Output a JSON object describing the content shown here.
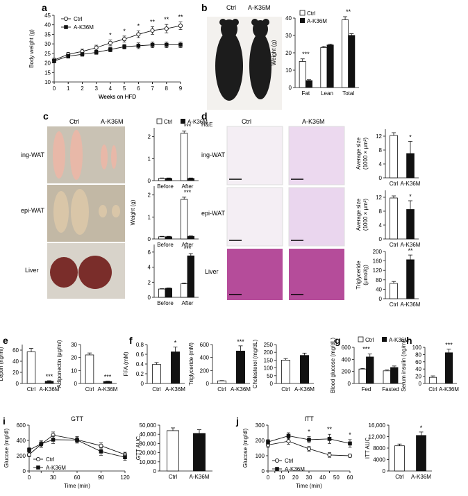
{
  "colors": {
    "ctrl": "#ffffff",
    "ak": "#111111",
    "stroke": "#111111",
    "mouse": "#1c1c1c",
    "wat": "#e8b8a8",
    "epi": "#d9c6a8",
    "liver": "#7a2d2a",
    "he_wat": "#c48fc9",
    "he_liver": "#b54c9a"
  },
  "panels": {
    "a": "a",
    "b": "b",
    "c": "c",
    "d": "d",
    "e": "e",
    "f": "f",
    "g": "g",
    "h": "h",
    "i": "i",
    "j": "j"
  },
  "labels": {
    "ctrl": "Ctrl",
    "ak": "A-K36M",
    "he": "H&E",
    "ing_wat": "ing-WAT",
    "epi_wat": "epi-WAT",
    "liver": "Liver",
    "before": "Before",
    "after": "After",
    "weeks_on_hfd": "Weeks on HFD",
    "body_weight": "Body weight (g)",
    "weight_g": "Weight (g)",
    "fat": "Fat",
    "lean": "Lean",
    "total": "Total",
    "avg_size": "Average size",
    "avg_size_unit": "(1000 × μm²)",
    "triglyceride_umol": "Triglyceride",
    "triglyceride_umol_unit": "(μmol/g)",
    "leptin": "Leptin (ng/ml)",
    "adiponectin": "Adiponectin (μg/ml)",
    "ffa": "FFA (mM)",
    "triglyceride_mm": "Triglyceride (mM)",
    "cholesterol": "Cholesterol (mg/dL)",
    "blood_glucose": "Blood glucose (mg/dL)",
    "fed": "Fed",
    "fasted": "Fasted",
    "serum_insulin": "Serum insulin (ng/ml)",
    "gtt": "GTT",
    "itt": "ITT",
    "glucose_mgdl": "Glucose (mg/dl)",
    "time_min": "Time (min)",
    "gtt_auc": "GTT AUC",
    "itt_auc": "ITT AUC"
  },
  "chart_data": [
    {
      "id": "a",
      "type": "line",
      "xlabel": "Weeks on HFD",
      "ylabel": "Body weight (g)",
      "xlim": [
        0,
        9
      ],
      "ylim": [
        10,
        45
      ],
      "x": [
        0,
        1,
        2,
        3,
        4,
        5,
        6,
        7,
        8,
        9
      ],
      "series": [
        {
          "name": "Ctrl",
          "values": [
            21.5,
            24.5,
            26,
            28,
            30.5,
            32.5,
            35,
            37,
            38,
            39.5
          ],
          "err": [
            1,
            1,
            1.2,
            1.3,
            1.5,
            1.6,
            1.8,
            2,
            2.2,
            2
          ]
        },
        {
          "name": "A-K36M",
          "values": [
            21,
            23.5,
            24.5,
            25.5,
            27,
            28.5,
            29,
            29.5,
            29.5,
            29.5
          ],
          "err": [
            1,
            1,
            1,
            1,
            1.2,
            1.2,
            1.5,
            1.5,
            1.5,
            1.5
          ]
        }
      ],
      "sig": [
        "",
        "",
        "",
        "",
        "*",
        "*",
        "*",
        "**",
        "**",
        "**"
      ]
    },
    {
      "id": "b",
      "type": "bar",
      "ylabel": "Weight (g)",
      "ylim": [
        0,
        40
      ],
      "categories": [
        "Fat",
        "Lean",
        "Total"
      ],
      "series": [
        {
          "name": "Ctrl",
          "values": [
            15,
            23,
            39
          ],
          "err": [
            1.5,
            0.8,
            1.8
          ]
        },
        {
          "name": "A-K36M",
          "values": [
            4,
            24.5,
            30
          ],
          "err": [
            0.5,
            0.5,
            1
          ]
        }
      ],
      "sig": [
        "***",
        "",
        "**"
      ]
    },
    {
      "id": "c1",
      "type": "bar",
      "ylabel": "",
      "ylim": [
        0,
        2.4
      ],
      "categories": [
        "Before",
        "After"
      ],
      "series": [
        {
          "name": "Ctrl",
          "values": [
            0.1,
            2.15
          ],
          "err": [
            0.02,
            0.1
          ]
        },
        {
          "name": "A-K36M",
          "values": [
            0.1,
            0.1
          ],
          "err": [
            0.02,
            0.02
          ]
        }
      ],
      "sig": [
        "",
        "***"
      ]
    },
    {
      "id": "c2",
      "type": "bar",
      "ylabel": "Weight (g)",
      "ylim": [
        0,
        2.4
      ],
      "categories": [
        "Before",
        "After"
      ],
      "series": [
        {
          "name": "Ctrl",
          "values": [
            0.1,
            1.8
          ],
          "err": [
            0.02,
            0.1
          ]
        },
        {
          "name": "A-K36M",
          "values": [
            0.1,
            0.12
          ],
          "err": [
            0.02,
            0.02
          ]
        }
      ],
      "sig": [
        "",
        "***"
      ]
    },
    {
      "id": "c3",
      "type": "bar",
      "ylabel": "",
      "ylim": [
        0,
        7
      ],
      "categories": [
        "Before",
        "After"
      ],
      "series": [
        {
          "name": "Ctrl",
          "values": [
            1.1,
            1.8
          ],
          "err": [
            0.05,
            0.1
          ]
        },
        {
          "name": "A-K36M",
          "values": [
            1.2,
            5.5
          ],
          "err": [
            0.05,
            0.3
          ]
        }
      ],
      "sig": [
        "",
        "***"
      ]
    },
    {
      "id": "d1",
      "type": "bar",
      "ylabel": "Average size (1000 × μm²)",
      "ylim": [
        0,
        14
      ],
      "categories": [
        "Ctrl",
        "A-K36M"
      ],
      "values": [
        12.2,
        7
      ],
      "err": [
        0.8,
        3.5
      ],
      "sig": [
        "",
        "*"
      ]
    },
    {
      "id": "d2",
      "type": "bar",
      "ylabel": "Average size (1000 × μm²)",
      "ylim": [
        0,
        14
      ],
      "categories": [
        "Ctrl",
        "A-K36M"
      ],
      "values": [
        11.8,
        8.5
      ],
      "err": [
        0.6,
        2.5
      ],
      "sig": [
        "",
        "*"
      ]
    },
    {
      "id": "d3",
      "type": "bar",
      "ylabel": "Triglyceride (μmol/g)",
      "ylim": [
        0,
        200
      ],
      "categories": [
        "Ctrl",
        "A-K36M"
      ],
      "values": [
        65,
        165
      ],
      "err": [
        8,
        20
      ],
      "sig": [
        "",
        "**"
      ]
    },
    {
      "id": "e1",
      "type": "bar",
      "ylabel": "Leptin (ng/ml)",
      "ylim": [
        0,
        70
      ],
      "categories": [
        "Ctrl",
        "A-K36M"
      ],
      "values": [
        57,
        4
      ],
      "err": [
        6,
        1
      ],
      "sig": [
        "",
        "***"
      ]
    },
    {
      "id": "e2",
      "type": "bar",
      "ylabel": "Adiponectin (μg/ml)",
      "ylim": [
        0,
        30
      ],
      "categories": [
        "Ctrl",
        "A-K36M"
      ],
      "values": [
        22,
        1.5
      ],
      "err": [
        1.5,
        0.3
      ],
      "sig": [
        "",
        "***"
      ]
    },
    {
      "id": "f1",
      "type": "bar",
      "ylabel": "FFA (mM)",
      "ylim": [
        0,
        0.8
      ],
      "categories": [
        "Ctrl",
        "A-K36M"
      ],
      "values": [
        0.39,
        0.65
      ],
      "err": [
        0.04,
        0.1
      ],
      "sig": [
        "",
        "*"
      ]
    },
    {
      "id": "f2",
      "type": "bar",
      "ylabel": "Triglyceride (mM)",
      "ylim": [
        0,
        600
      ],
      "categories": [
        "Ctrl",
        "A-K36M"
      ],
      "values": [
        40,
        500
      ],
      "err": [
        5,
        80
      ],
      "sig": [
        "",
        "***"
      ]
    },
    {
      "id": "f3",
      "type": "bar",
      "ylabel": "Cholesterol (mg/dL)",
      "ylim": [
        0,
        250
      ],
      "categories": [
        "Ctrl",
        "A-K36M"
      ],
      "values": [
        150,
        180
      ],
      "err": [
        10,
        15
      ],
      "sig": [
        "",
        ""
      ]
    },
    {
      "id": "g",
      "type": "bar",
      "ylabel": "Blood glucose (mg/dL)",
      "ylim": [
        0,
        600
      ],
      "categories": [
        "Fed",
        "Fasted"
      ],
      "series": [
        {
          "name": "Ctrl",
          "values": [
            240,
            210
          ],
          "err": [
            10,
            15
          ]
        },
        {
          "name": "A-K36M",
          "values": [
            440,
            265
          ],
          "err": [
            50,
            25
          ]
        }
      ],
      "sig": [
        "***",
        ""
      ]
    },
    {
      "id": "h",
      "type": "bar",
      "ylabel": "Serum insulin (ng/ml)",
      "ylim": [
        0,
        100
      ],
      "categories": [
        "Ctrl",
        "A-K36M"
      ],
      "values": [
        17,
        85
      ],
      "err": [
        4,
        10
      ],
      "sig": [
        "",
        "***"
      ]
    },
    {
      "id": "i1",
      "type": "line",
      "title": "GTT",
      "xlabel": "Time (min)",
      "ylabel": "Glucose (mg/dl)",
      "xlim": [
        0,
        120
      ],
      "ylim": [
        0,
        600
      ],
      "x": [
        0,
        15,
        30,
        60,
        90,
        120
      ],
      "series": [
        {
          "name": "Ctrl",
          "values": [
            215,
            350,
            470,
            410,
            330,
            215
          ],
          "err": [
            30,
            40,
            40,
            40,
            40,
            30
          ]
        },
        {
          "name": "A-K36M",
          "values": [
            275,
            355,
            410,
            405,
            255,
            180
          ],
          "err": [
            30,
            40,
            50,
            40,
            50,
            40
          ]
        }
      ]
    },
    {
      "id": "i2",
      "type": "bar",
      "ylabel": "GTT AUC",
      "ylim": [
        0,
        50000
      ],
      "categories": [
        "Ctrl",
        "A-K36M"
      ],
      "values": [
        44000,
        41000
      ],
      "err": [
        3000,
        4000
      ],
      "sig": [
        "",
        ""
      ]
    },
    {
      "id": "j1",
      "type": "line",
      "title": "ITT",
      "xlabel": "Time (min)",
      "ylabel": "Glucose (mg/dl)",
      "xlim": [
        0,
        60
      ],
      "ylim": [
        0,
        300
      ],
      "x": [
        0,
        15,
        30,
        45,
        60
      ],
      "series": [
        {
          "name": "Ctrl",
          "values": [
            170,
            195,
            145,
            105,
            100
          ],
          "err": [
            15,
            20,
            15,
            15,
            10
          ]
        },
        {
          "name": "A-K36M",
          "values": [
            190,
            230,
            205,
            210,
            180
          ],
          "err": [
            15,
            20,
            20,
            30,
            25
          ]
        }
      ],
      "extra_x": [
        5,
        10
      ],
      "sig": [
        "",
        "",
        "*",
        "**",
        "*"
      ]
    },
    {
      "id": "j2",
      "type": "bar",
      "ylabel": "ITT AUC",
      "ylim": [
        0,
        16000
      ],
      "categories": [
        "Ctrl",
        "A-K36M"
      ],
      "values": [
        8800,
        12400
      ],
      "err": [
        600,
        1200
      ],
      "sig": [
        "",
        "*"
      ]
    }
  ]
}
